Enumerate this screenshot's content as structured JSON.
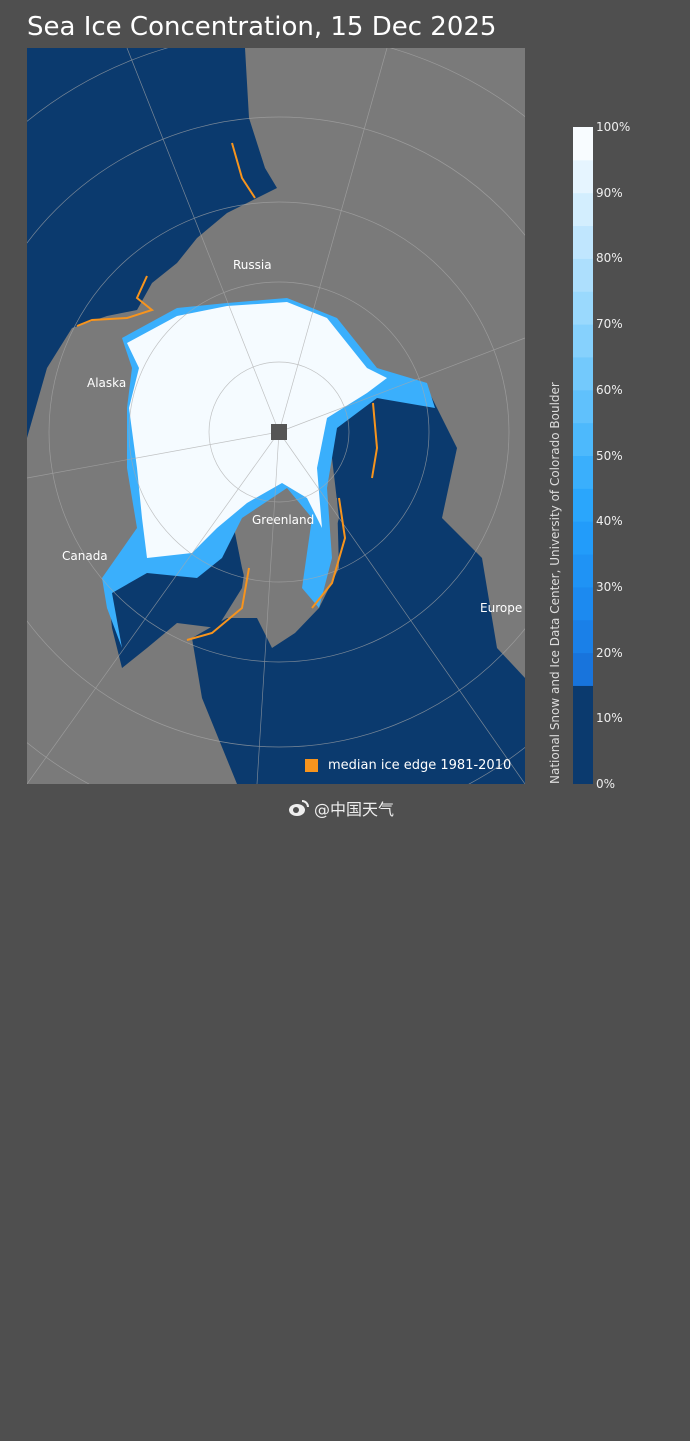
{
  "title": "Sea Ice Concentration, 15 Dec 2025",
  "map": {
    "projection": "north polar stereographic",
    "labels": {
      "russia": "Russia",
      "alaska": "Alaska",
      "canada": "Canada",
      "greenland": "Greenland",
      "europe": "Europe"
    },
    "colors": {
      "ocean": "#0b3a6e",
      "land": "#7a7a7a",
      "ice_full": "#f5fbff",
      "median_edge": "#f7941d",
      "graticule": "#a9a9a9"
    }
  },
  "legend": {
    "label": "median ice edge 1981-2010",
    "color": "#f7941d"
  },
  "colorbar": {
    "ticks": [
      "0%",
      "10%",
      "20%",
      "30%",
      "40%",
      "50%",
      "60%",
      "70%",
      "80%",
      "90%",
      "100%"
    ],
    "threshold_percent": 15,
    "colors": [
      "#0b3a6e",
      "#1874dc",
      "#1a80e8",
      "#1c8af0",
      "#1f93f5",
      "#229cfa",
      "#2aa6fc",
      "#3aaffc",
      "#4db9fc",
      "#60c1fc",
      "#73c9fc",
      "#86d1fd",
      "#9ad9fd",
      "#addffd",
      "#c0e6fe",
      "#d3eefe",
      "#e6f5ff",
      "#f8fcff"
    ]
  },
  "credit": "National Snow and Ice Data Center, University of Colorado Boulder",
  "watermark": "@中国天气"
}
